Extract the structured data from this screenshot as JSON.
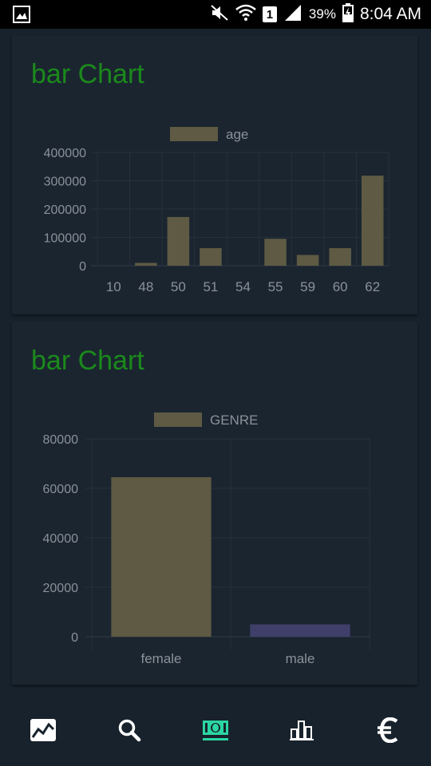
{
  "status_bar": {
    "battery": "39%",
    "time": "8:04 AM",
    "sim": "1",
    "icons": [
      "gallery-icon",
      "mute-icon",
      "wifi-icon",
      "sim-icon",
      "signal-icon",
      "battery-icon"
    ]
  },
  "colors": {
    "background": "#17222c",
    "card": "#1b2530",
    "title": "#1b8a1b",
    "bar_primary": "#5e5a43",
    "bar_secondary": "#3f3f6a",
    "axis_text": "#8a9199",
    "grid": "#26313c",
    "nav_active": "#2bd6a2",
    "nav_inactive": "#ffffff"
  },
  "cards": [
    {
      "title": "bar Chart"
    },
    {
      "title": "bar Chart"
    }
  ],
  "chart_data": [
    {
      "type": "bar",
      "title": "",
      "legend": "age",
      "categories": [
        "10",
        "48",
        "50",
        "51",
        "54",
        "55",
        "59",
        "60",
        "62"
      ],
      "values": [
        0,
        10000,
        172000,
        62000,
        0,
        95000,
        38000,
        62000,
        318000
      ],
      "ylim": [
        0,
        400000
      ],
      "yticks": [
        "400000",
        "300000",
        "200000",
        "100000",
        "0"
      ],
      "grid": true,
      "legend_position": "top-center"
    },
    {
      "type": "bar",
      "title": "",
      "legend": "GENRE",
      "categories": [
        "female",
        "male"
      ],
      "values": [
        64500,
        5000
      ],
      "ylim": [
        0,
        80000
      ],
      "yticks": [
        "80000",
        "60000",
        "40000",
        "20000",
        "0"
      ],
      "grid": true,
      "legend_position": "top-center"
    }
  ],
  "bottom_nav": {
    "items": [
      {
        "icon": "trend-chart-icon",
        "active": false
      },
      {
        "icon": "search-icon",
        "active": false
      },
      {
        "icon": "money-icon",
        "active": true
      },
      {
        "icon": "bar-chart-icon",
        "active": false
      },
      {
        "icon": "euro-icon",
        "active": false
      }
    ]
  }
}
